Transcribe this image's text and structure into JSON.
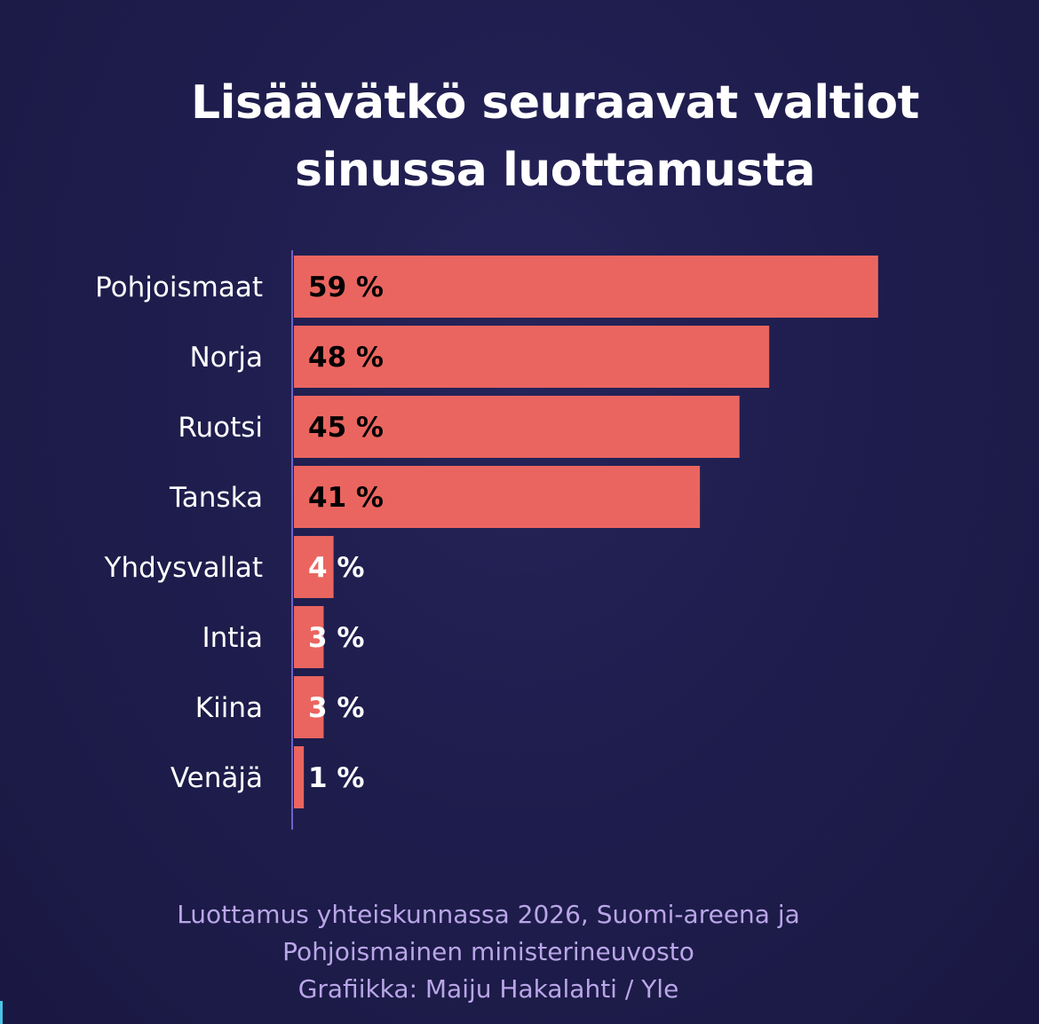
{
  "colors": {
    "background": "#1f1d4d",
    "bar": "#ea6560",
    "axis": "#6a63c9",
    "label_inside": "#000000",
    "label_outside": "#ffffff",
    "source_text": "#b9a6e8"
  },
  "chart_data": {
    "type": "bar",
    "orientation": "horizontal",
    "title": "Lisäävätkö seuraavat valtiot sinussa luottamusta",
    "title_lines": [
      "Lisäävätkö seuraavat valtiot",
      "sinussa luottamusta"
    ],
    "categories": [
      "Pohjoismaat",
      "Norja",
      "Ruotsi",
      "Tanska",
      "Yhdysvallat",
      "Intia",
      "Kiina",
      "Venäjä"
    ],
    "values": [
      59,
      48,
      45,
      41,
      4,
      3,
      3,
      1
    ],
    "value_labels": [
      "59 %",
      "48 %",
      "45 %",
      "41 %",
      "4 %",
      "3 %",
      "3 %",
      "1 %"
    ],
    "unit": "%",
    "xlim": [
      0,
      70
    ],
    "grid": false,
    "legend": "none"
  },
  "source": {
    "lines": [
      "Luottamus yhteiskunnassa 2026, Suomi-areena ja",
      "Pohjoismainen ministerineuvosto",
      "Grafiikka: Maiju Hakalahti / Yle"
    ]
  }
}
